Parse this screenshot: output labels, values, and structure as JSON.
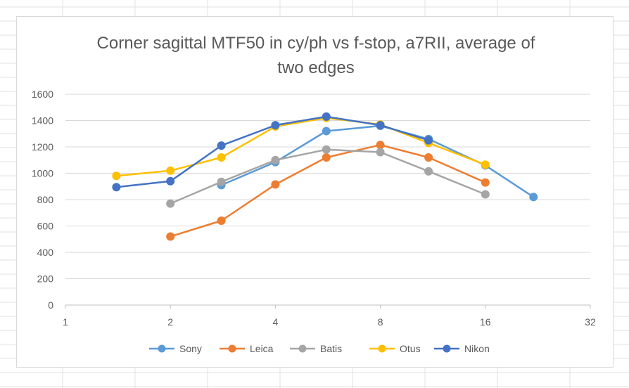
{
  "chart_data": {
    "type": "line",
    "title_lines": [
      "Corner sagittal MTF50 in cy/ph vs f-stop, a7RII, average of",
      "two edges"
    ],
    "xlabel": "",
    "ylabel": "",
    "x_scale": "log2",
    "xlim": [
      1,
      32
    ],
    "ylim": [
      0,
      1600
    ],
    "x_ticks": [
      1,
      2,
      4,
      8,
      16,
      32
    ],
    "x_tick_labels": [
      "1",
      "2",
      "4",
      "8",
      "16",
      "32"
    ],
    "y_ticks": [
      0,
      200,
      400,
      600,
      800,
      1000,
      1200,
      1400,
      1600
    ],
    "y_tick_labels": [
      "0",
      "200",
      "400",
      "600",
      "800",
      "1000",
      "1200",
      "1400",
      "1600"
    ],
    "grid": "horizontal",
    "legend_position": "bottom",
    "series": [
      {
        "name": "Sony",
        "color": "#5B9BD5",
        "x": [
          2.8,
          4,
          5.6,
          8,
          11,
          16,
          22
        ],
        "y": [
          910,
          1085,
          1320,
          1360,
          1260,
          1060,
          820
        ]
      },
      {
        "name": "Leica",
        "color": "#ED7D31",
        "x": [
          2,
          2.8,
          4,
          5.6,
          8,
          11,
          16
        ],
        "y": [
          520,
          640,
          915,
          1120,
          1215,
          1120,
          930
        ]
      },
      {
        "name": "Batis",
        "color": "#A5A5A5",
        "x": [
          2,
          2.8,
          4,
          5.6,
          8,
          11,
          16
        ],
        "y": [
          770,
          935,
          1100,
          1180,
          1160,
          1015,
          840
        ]
      },
      {
        "name": "Otus",
        "color": "#FFC000",
        "x": [
          1.4,
          2,
          2.8,
          4,
          5.6,
          8,
          11,
          16
        ],
        "y": [
          980,
          1020,
          1120,
          1355,
          1420,
          1370,
          1230,
          1065
        ]
      },
      {
        "name": "Nikon",
        "color": "#4472C4",
        "x": [
          1.4,
          2,
          2.8,
          4,
          5.6,
          8,
          11
        ],
        "y": [
          895,
          940,
          1210,
          1365,
          1430,
          1365,
          1250
        ]
      }
    ]
  }
}
